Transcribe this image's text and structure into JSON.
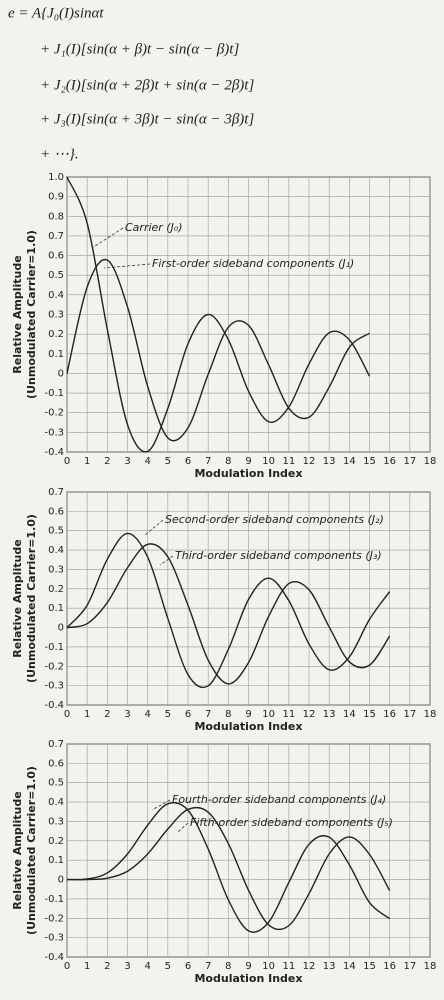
{
  "equation": [
    "e = A{J₀(I)sinαt",
    "+ J₁(I)[sin(α + β)t − sin(α − β)t]",
    "+ J₂(I)[sin(α + 2β)t + sin(α − 2β)t]",
    "+ J₃(I)[sin(α + 3β)t − sin(α − 3β)t]",
    "+ ⋯}."
  ],
  "chart_data": [
    {
      "type": "line",
      "xlabel": "Modulation Index",
      "ylabel": [
        "Relative Amplitude",
        "(Unmodulated Carrier=1.0)"
      ],
      "x": [
        0,
        1,
        2,
        3,
        4,
        5,
        6,
        7,
        8,
        9,
        10,
        11,
        12,
        13,
        14,
        15
      ],
      "series": [
        {
          "name": "Carrier (J₀)",
          "color": "#222",
          "values": [
            1,
            0.765,
            0.224,
            -0.26,
            -0.397,
            -0.178,
            0.151,
            0.3,
            0.172,
            -0.09,
            -0.246,
            -0.171,
            0.048,
            0.207,
            0.171,
            -0.014
          ]
        },
        {
          "name": "First-order sideband components (J₁)",
          "color": "#222",
          "values": [
            0,
            0.44,
            0.577,
            0.339,
            -0.066,
            -0.328,
            -0.277,
            -0.005,
            0.235,
            0.245,
            0.043,
            -0.177,
            -0.223,
            -0.07,
            0.133,
            0.205
          ]
        }
      ],
      "xlim": [
        0,
        18
      ],
      "xticks": [
        0,
        1,
        2,
        3,
        4,
        5,
        6,
        7,
        8,
        9,
        10,
        11,
        12,
        13,
        14,
        15,
        16,
        17,
        18
      ],
      "ylim": [
        -0.4,
        1.0
      ],
      "yticks": [
        -0.4,
        -0.3,
        -0.2,
        -0.1,
        0,
        0.1,
        0.2,
        0.3,
        0.4,
        0.5,
        0.6,
        0.7,
        0.8,
        0.9,
        {
          "value": 1,
          "label": "1.0"
        }
      ],
      "grid": true
    },
    {
      "type": "line",
      "xlabel": "Modulation Index",
      "ylabel": [
        "Relative Amplitude",
        "(Unmodulated Carrier=1.0)"
      ],
      "x": [
        0,
        1,
        2,
        3,
        4,
        5,
        6,
        7,
        8,
        9,
        10,
        11,
        12,
        13,
        14,
        15,
        16
      ],
      "series": [
        {
          "name": "Second-order sideband components (J₂)",
          "color": "#222",
          "values": [
            0,
            0.115,
            0.353,
            0.486,
            0.364,
            0.047,
            -0.243,
            -0.301,
            -0.113,
            0.145,
            0.255,
            0.139,
            -0.085,
            -0.218,
            -0.152,
            0.042,
            0.186
          ]
        },
        {
          "name": "Third-order sideband components (J₃)",
          "color": "#222",
          "values": [
            0,
            0.02,
            0.129,
            0.309,
            0.43,
            0.365,
            0.115,
            -0.168,
            -0.291,
            -0.181,
            0.058,
            0.227,
            0.195,
            0.003,
            -0.177,
            -0.194,
            -0.044
          ]
        }
      ],
      "xlim": [
        0,
        18
      ],
      "xticks": [
        0,
        1,
        2,
        3,
        4,
        5,
        6,
        7,
        8,
        9,
        10,
        11,
        12,
        13,
        14,
        15,
        16,
        17,
        18
      ],
      "ylim": [
        -0.4,
        0.7
      ],
      "yticks": [
        -0.4,
        -0.3,
        -0.2,
        -0.1,
        0,
        0.1,
        0.2,
        0.3,
        0.4,
        0.5,
        0.6,
        0.7
      ],
      "grid": true
    },
    {
      "type": "line",
      "xlabel": "Modulation Index",
      "ylabel": [
        "Relative Amplitude",
        "(Unmodulated Carrier=1.0)"
      ],
      "x": [
        0,
        1,
        2,
        3,
        4,
        5,
        6,
        7,
        8,
        9,
        10,
        11,
        12,
        13,
        14,
        15,
        16
      ],
      "series": [
        {
          "name": "Fourth-order sideband components (J₄)",
          "color": "#222",
          "values": [
            0,
            0.003,
            0.034,
            0.132,
            0.281,
            0.391,
            0.358,
            0.158,
            -0.105,
            -0.265,
            -0.22,
            -0.015,
            0.182,
            0.219,
            0.076,
            -0.119,
            -0.202
          ]
        },
        {
          "name": "Fifth-order sideband components (J₅)",
          "color": "#222",
          "values": [
            0,
            0,
            0.007,
            0.043,
            0.132,
            0.261,
            0.362,
            0.348,
            0.186,
            -0.055,
            -0.234,
            -0.238,
            -0.073,
            0.132,
            0.22,
            0.13,
            -0.057
          ]
        }
      ],
      "xlim": [
        0,
        18
      ],
      "xticks": [
        0,
        1,
        2,
        3,
        4,
        5,
        6,
        7,
        8,
        9,
        10,
        11,
        12,
        13,
        14,
        15,
        16,
        17,
        18
      ],
      "ylim": [
        -0.4,
        0.7
      ],
      "yticks": [
        -0.4,
        -0.3,
        -0.2,
        -0.1,
        0,
        0.1,
        0.2,
        0.3,
        0.4,
        0.5,
        0.6,
        0.7
      ],
      "grid": true
    }
  ]
}
